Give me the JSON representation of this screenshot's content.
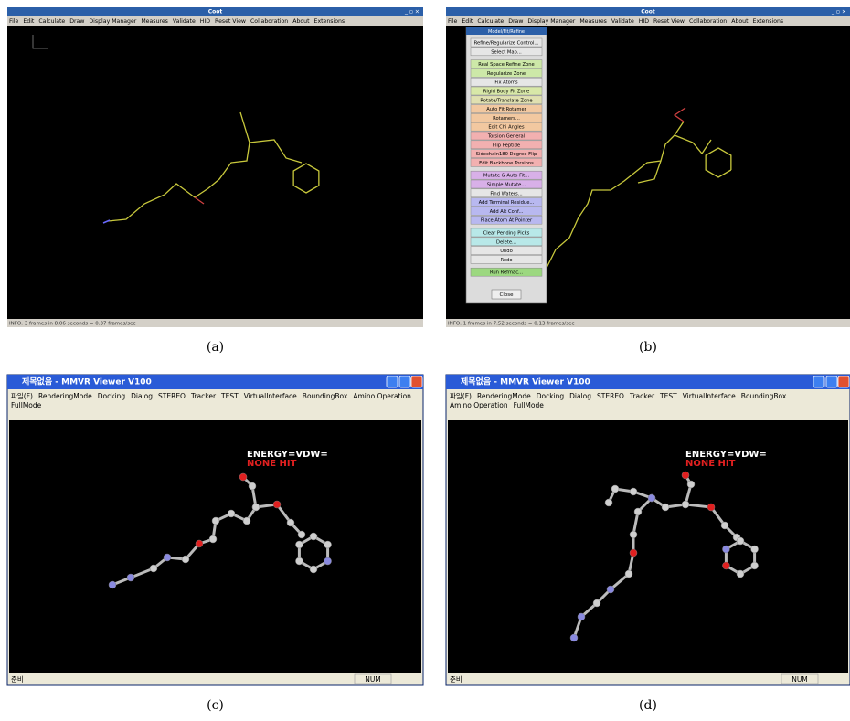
{
  "panels": [
    {
      "caption": "(a)",
      "window": {
        "title": "Coot",
        "menu": [
          "File",
          "Edit",
          "Calculate",
          "Draw",
          "Display Manager",
          "Measures",
          "Validate",
          "HID",
          "Reset View",
          "Collaboration",
          "About",
          "Extensions"
        ],
        "status": "INFO: 3 frames in 8.06 seconds =  0.37 frames/sec"
      }
    },
    {
      "caption": "(b)",
      "window": {
        "title": "Coot",
        "menu": [
          "File",
          "Edit",
          "Calculate",
          "Draw",
          "Display Manager",
          "Measures",
          "Validate",
          "HID",
          "Reset View",
          "Collaboration",
          "About",
          "Extensions"
        ],
        "status": "INFO: 1 frames in 7.52 seconds =  0.13 frames/sec",
        "dialog": {
          "title": "Model/Fit/Refine",
          "buttons": [
            "Refine/Regularize Control...",
            "Select Map...",
            "Real Space Refine Zone",
            "Regularize Zone",
            "Fix Atoms",
            "Rigid Body Fit Zone",
            "Rotate/Translate Zone",
            "Auto Fit Rotamer",
            "Rotamers...",
            "Edit Chi Angles",
            "Torsion General",
            "Flip Peptide",
            "Sidechain180 Degree Flip",
            "Edit Backbone Torsions",
            "Mutate & Auto Fit...",
            "Simple Mutate...",
            "Find Waters...",
            "Add Terminal Residue...",
            "Add Alt Conf...",
            "Place Atom At Pointer",
            "Clear Pending Picks",
            "Delete...",
            "Undo",
            "Redo",
            "Run Refmac..."
          ],
          "close": "Close"
        }
      }
    },
    {
      "caption": "(c)",
      "window": {
        "title": "제목없음 - MMVR Viewer V100",
        "menu": [
          "파일(F)",
          "RenderingMode",
          "Docking",
          "Dialog",
          "STEREO",
          "Tracker",
          "TEST",
          "VirtualInterface",
          "BoundingBox",
          "Amino Operation",
          "FullMode"
        ],
        "overlay": [
          "ENERGY=VDW=",
          "NONE HIT"
        ],
        "status": [
          "준비",
          "NUM"
        ]
      }
    },
    {
      "caption": "(d)",
      "window": {
        "title": "제목없음 - MMVR Viewer V100",
        "menu": [
          "파일(F)",
          "RenderingMode",
          "Docking",
          "Dialog",
          "STEREO",
          "Tracker",
          "TEST",
          "VirtualInterface",
          "BoundingBox",
          "Amino Operation",
          "FullMode"
        ],
        "overlay": [
          "ENERGY=VDW=",
          "NONE HIT"
        ],
        "status": [
          "준비",
          "NUM"
        ]
      }
    }
  ]
}
